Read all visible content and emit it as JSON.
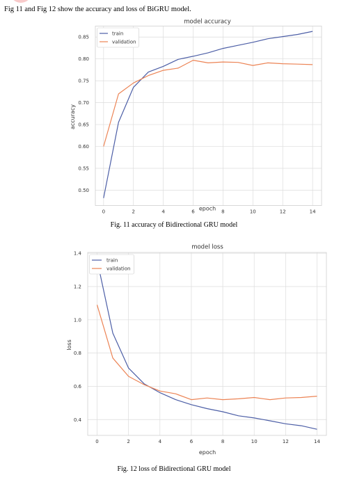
{
  "intro_text": "Fig 11 and Fig 12 show the accuracy and loss of BiGRU model.",
  "colors": {
    "train": "#4c5ea6",
    "validation": "#ec8354",
    "grid": "#dcdcdc"
  },
  "captions": {
    "fig11": "Fig. 11 accuracy of Bidirectional GRU model",
    "fig12": "Fig. 12 loss of Bidirectional GRU model"
  },
  "chart_data": [
    {
      "type": "line",
      "title": "model accuracy",
      "xlabel": "epoch",
      "ylabel": "accuracy",
      "xlim": [
        -0.55,
        14.6
      ],
      "ylim": [
        0.465,
        0.875
      ],
      "xticks": [
        0,
        2,
        4,
        6,
        8,
        10,
        12,
        14
      ],
      "yticks": [
        0.5,
        0.55,
        0.6,
        0.65,
        0.7,
        0.75,
        0.8,
        0.85
      ],
      "ytick_labels": [
        "0.50",
        "0.55",
        "0.60",
        "0.65",
        "0.70",
        "0.75",
        "0.80",
        "0.85"
      ],
      "legend": "top-left",
      "grid": true,
      "x": [
        0,
        1,
        2,
        3,
        4,
        5,
        6,
        7,
        8,
        9,
        10,
        11,
        12,
        13,
        14
      ],
      "series": [
        {
          "name": "train",
          "values": [
            0.482,
            0.655,
            0.735,
            0.77,
            0.783,
            0.799,
            0.806,
            0.814,
            0.824,
            0.831,
            0.838,
            0.846,
            0.851,
            0.856,
            0.863
          ]
        },
        {
          "name": "validation",
          "values": [
            0.6,
            0.72,
            0.745,
            0.762,
            0.774,
            0.779,
            0.797,
            0.791,
            0.793,
            0.792,
            0.785,
            0.791,
            0.789,
            0.788,
            0.787
          ]
        }
      ]
    },
    {
      "type": "line",
      "title": "model loss",
      "xlabel": "epoch",
      "ylabel": "loss",
      "xlim": [
        -0.6,
        14.6
      ],
      "ylim": [
        0.305,
        1.405
      ],
      "xticks": [
        0,
        2,
        4,
        6,
        8,
        10,
        12,
        14
      ],
      "yticks": [
        0.4,
        0.6,
        0.8,
        1.0,
        1.2,
        1.4
      ],
      "ytick_labels": [
        "0.4",
        "0.6",
        "0.8",
        "1.0",
        "1.2",
        "1.4"
      ],
      "legend": "top-left",
      "grid": true,
      "x": [
        0,
        1,
        2,
        3,
        4,
        5,
        6,
        7,
        8,
        9,
        10,
        11,
        12,
        13,
        14
      ],
      "series": [
        {
          "name": "train",
          "values": [
            1.36,
            0.92,
            0.71,
            0.615,
            0.562,
            0.52,
            0.49,
            0.466,
            0.447,
            0.423,
            0.41,
            0.393,
            0.375,
            0.363,
            0.342
          ]
        },
        {
          "name": "validation",
          "values": [
            1.09,
            0.77,
            0.66,
            0.61,
            0.572,
            0.555,
            0.52,
            0.53,
            0.52,
            0.525,
            0.533,
            0.52,
            0.53,
            0.533,
            0.541
          ]
        }
      ]
    }
  ]
}
